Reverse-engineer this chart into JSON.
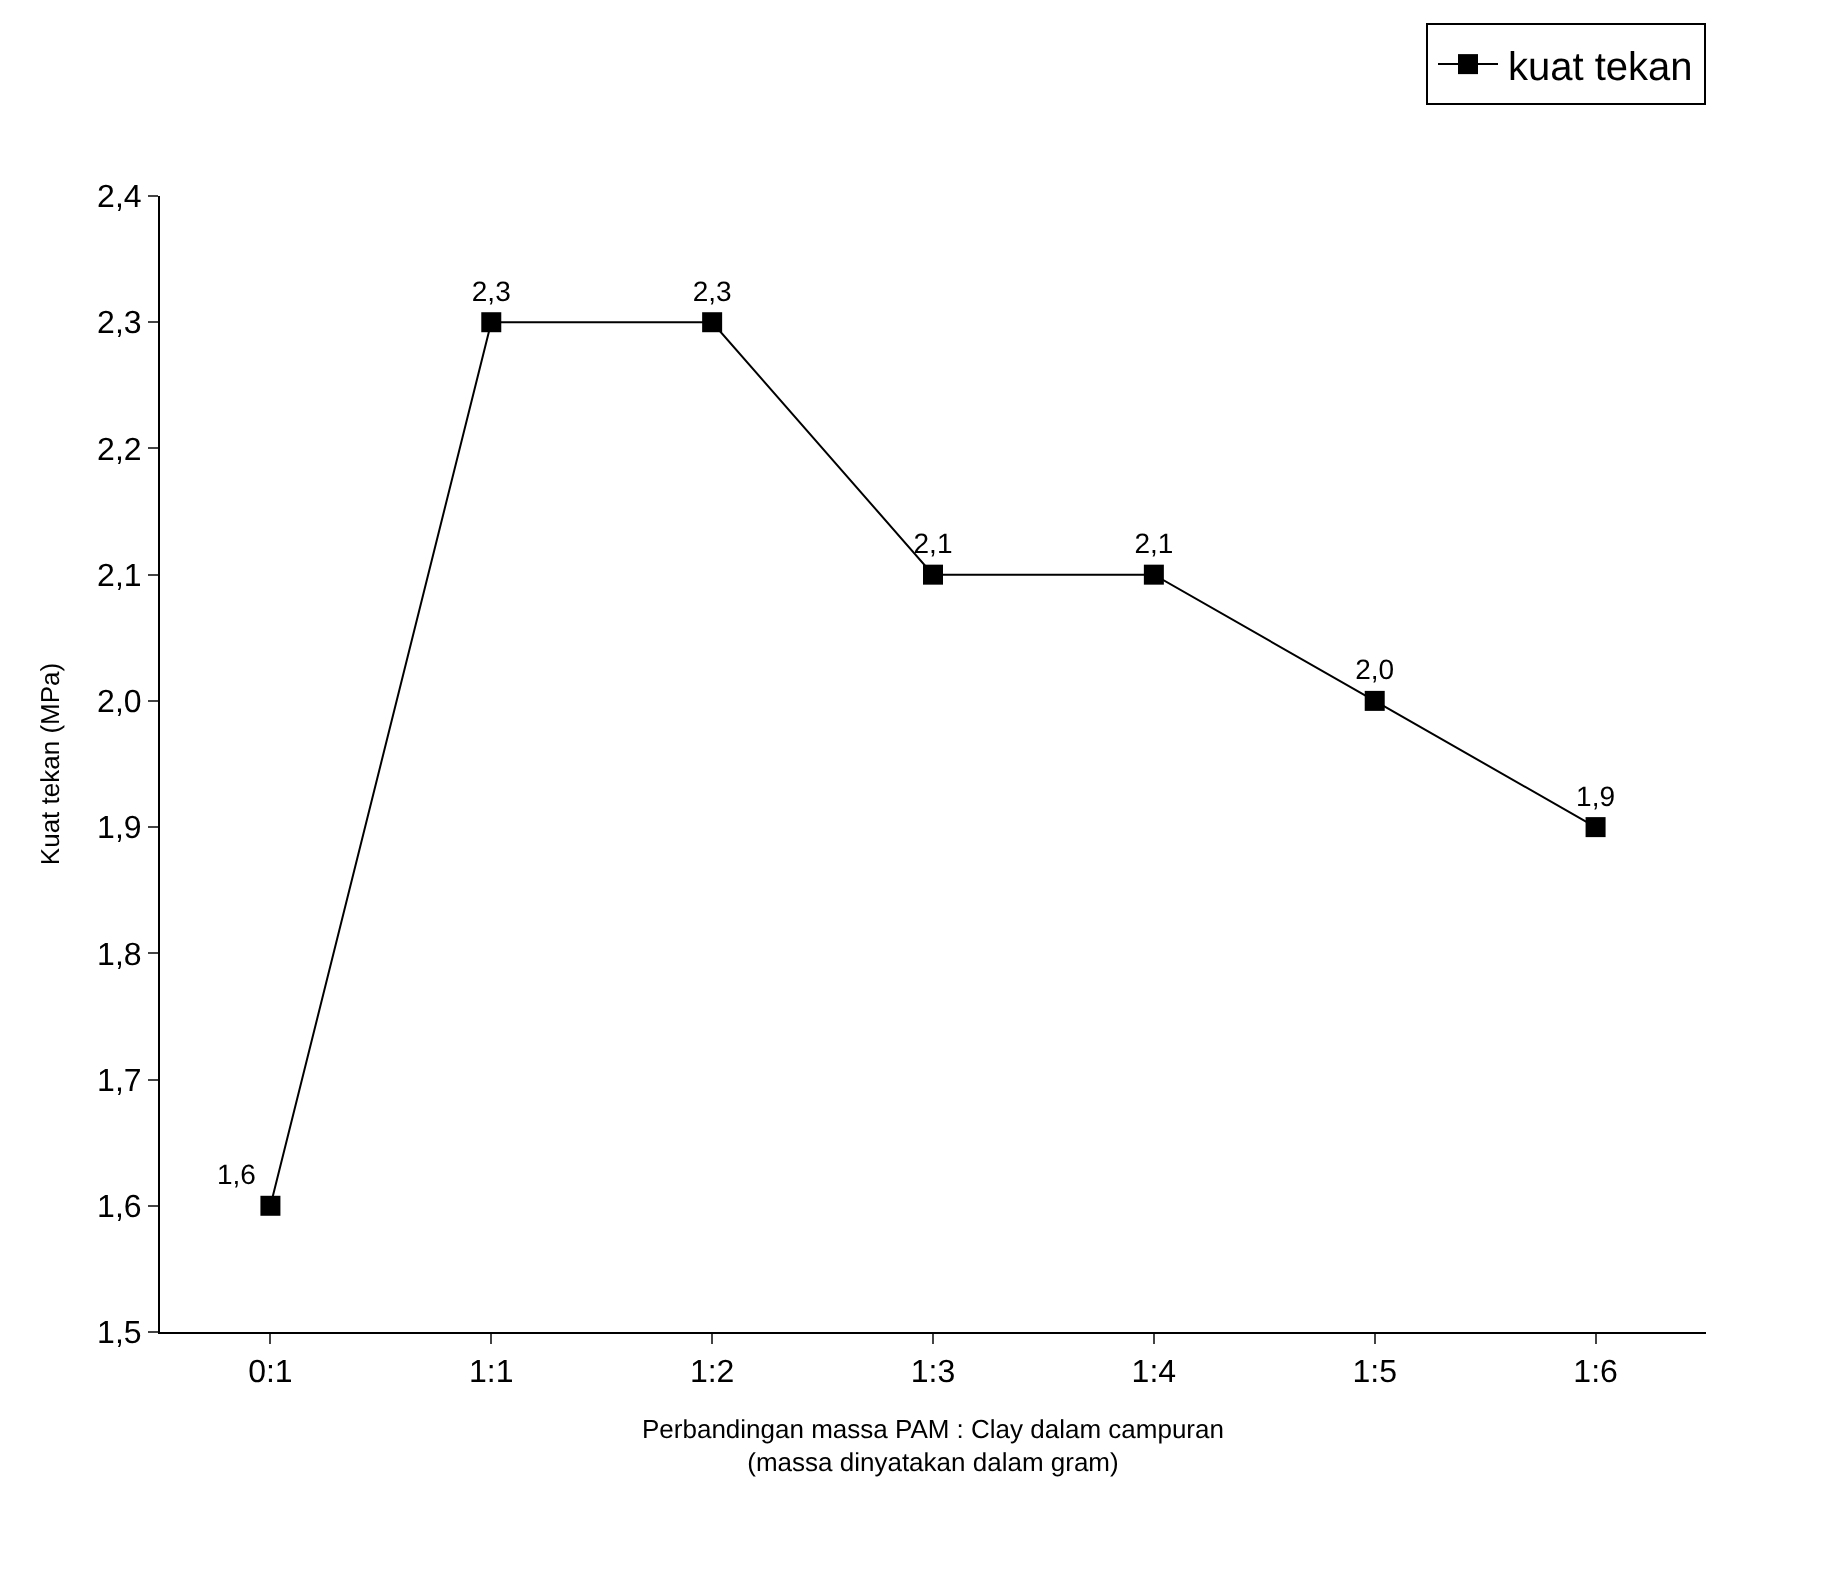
{
  "chart_data": {
    "type": "line",
    "xlabel": "Perbandingan massa PAM : Clay dalam campuran\n(massa dinyatakan dalam gram)",
    "ylabel": "Kuat tekan (MPa)",
    "categories": [
      "0:1",
      "1:1",
      "1:2",
      "1:3",
      "1:4",
      "1:5",
      "1:6"
    ],
    "series": [
      {
        "name": "kuat tekan",
        "color": "#000000",
        "values": [
          1.6,
          2.3,
          2.3,
          2.1,
          2.1,
          2.0,
          1.9
        ],
        "value_labels": [
          "1,6",
          "2,3",
          "2,3",
          "2,1",
          "2,1",
          "2,0",
          "1,9"
        ]
      }
    ],
    "ylim": [
      1.5,
      2.4
    ],
    "yticks": [
      {
        "value": 1.5,
        "label": "1,5"
      },
      {
        "value": 1.6,
        "label": "1,6"
      },
      {
        "value": 1.7,
        "label": "1,7"
      },
      {
        "value": 1.8,
        "label": "1,8"
      },
      {
        "value": 1.9,
        "label": "1,9"
      },
      {
        "value": 2.0,
        "label": "2,0"
      },
      {
        "value": 2.1,
        "label": "2,1"
      },
      {
        "value": 2.2,
        "label": "2,2"
      },
      {
        "value": 2.3,
        "label": "2,3"
      },
      {
        "value": 2.4,
        "label": "2,4"
      }
    ],
    "legend": "top right",
    "marker": "square",
    "line_style": "solid"
  }
}
